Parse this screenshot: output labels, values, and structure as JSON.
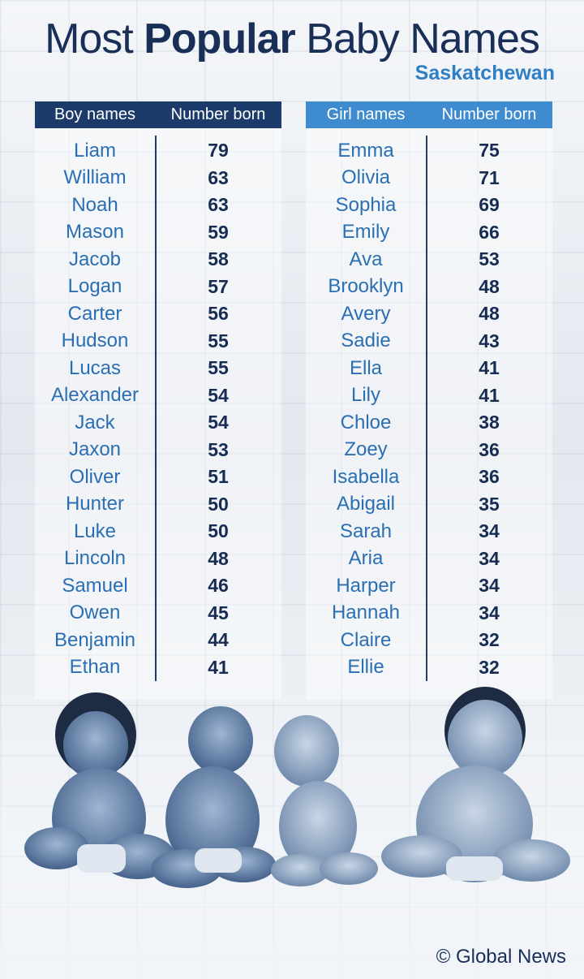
{
  "title": {
    "prefix": "Most",
    "emphasis": "Popular",
    "suffix": "Baby Names",
    "subtitle": "Saskatchewan"
  },
  "credit": "© Global News",
  "colors": {
    "navy": "#1c3a6a",
    "blue": "#3e8bd0",
    "name_text": "#2a6fb3",
    "number_text": "#162c52"
  },
  "chart_data": [
    {
      "type": "table",
      "columns": [
        "Boy names",
        "Number born"
      ],
      "rows": [
        [
          "Liam",
          79
        ],
        [
          "William",
          63
        ],
        [
          "Noah",
          63
        ],
        [
          "Mason",
          59
        ],
        [
          "Jacob",
          58
        ],
        [
          "Logan",
          57
        ],
        [
          "Carter",
          56
        ],
        [
          "Hudson",
          55
        ],
        [
          "Lucas",
          55
        ],
        [
          "Alexander",
          54
        ],
        [
          "Jack",
          54
        ],
        [
          "Jaxon",
          53
        ],
        [
          "Oliver",
          51
        ],
        [
          "Hunter",
          50
        ],
        [
          "Luke",
          50
        ],
        [
          "Lincoln",
          48
        ],
        [
          "Samuel",
          46
        ],
        [
          "Owen",
          45
        ],
        [
          "Benjamin",
          44
        ],
        [
          "Ethan",
          41
        ]
      ]
    },
    {
      "type": "table",
      "columns": [
        "Girl names",
        "Number born"
      ],
      "rows": [
        [
          "Emma",
          75
        ],
        [
          "Olivia",
          71
        ],
        [
          "Sophia",
          69
        ],
        [
          "Emily",
          66
        ],
        [
          "Ava",
          53
        ],
        [
          "Brooklyn",
          48
        ],
        [
          "Avery",
          48
        ],
        [
          "Sadie",
          43
        ],
        [
          "Ella",
          41
        ],
        [
          "Lily",
          41
        ],
        [
          "Chloe",
          38
        ],
        [
          "Zoey",
          36
        ],
        [
          "Isabella",
          36
        ],
        [
          "Abigail",
          35
        ],
        [
          "Sarah",
          34
        ],
        [
          "Aria",
          34
        ],
        [
          "Harper",
          34
        ],
        [
          "Hannah",
          34
        ],
        [
          "Claire",
          32
        ],
        [
          "Ellie",
          32
        ]
      ]
    }
  ]
}
